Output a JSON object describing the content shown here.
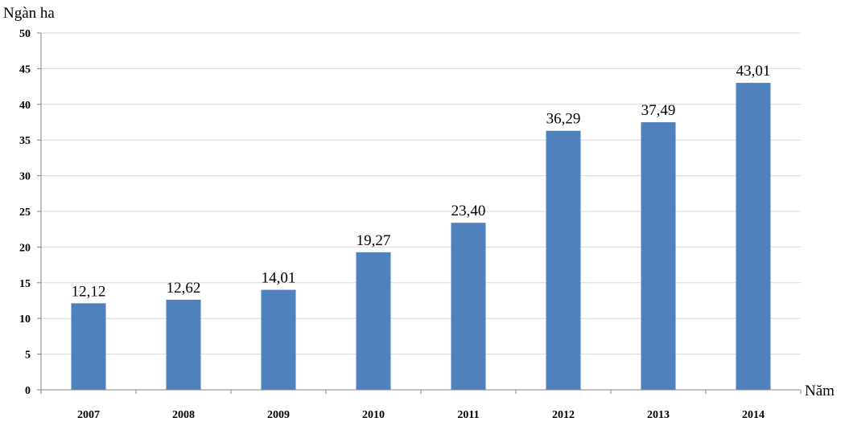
{
  "chart_data": {
    "type": "bar",
    "ylabel": "Ngàn ha",
    "xlabel": "Năm",
    "categories": [
      "2007",
      "2008",
      "2009",
      "2010",
      "2011",
      "2012",
      "2013",
      "2014"
    ],
    "values": [
      12.12,
      12.62,
      14.01,
      19.27,
      23.4,
      36.29,
      37.49,
      43.01
    ],
    "data_labels": [
      "12,12",
      "12,62",
      "14,01",
      "19,27",
      "23,40",
      "36,29",
      "37,49",
      "43,01"
    ],
    "ylim": [
      0,
      50
    ],
    "yticks": [
      "0",
      "5",
      "10",
      "15",
      "20",
      "25",
      "30",
      "35",
      "40",
      "45",
      "50"
    ],
    "grid": true,
    "bar_color": "#4f81bd"
  }
}
